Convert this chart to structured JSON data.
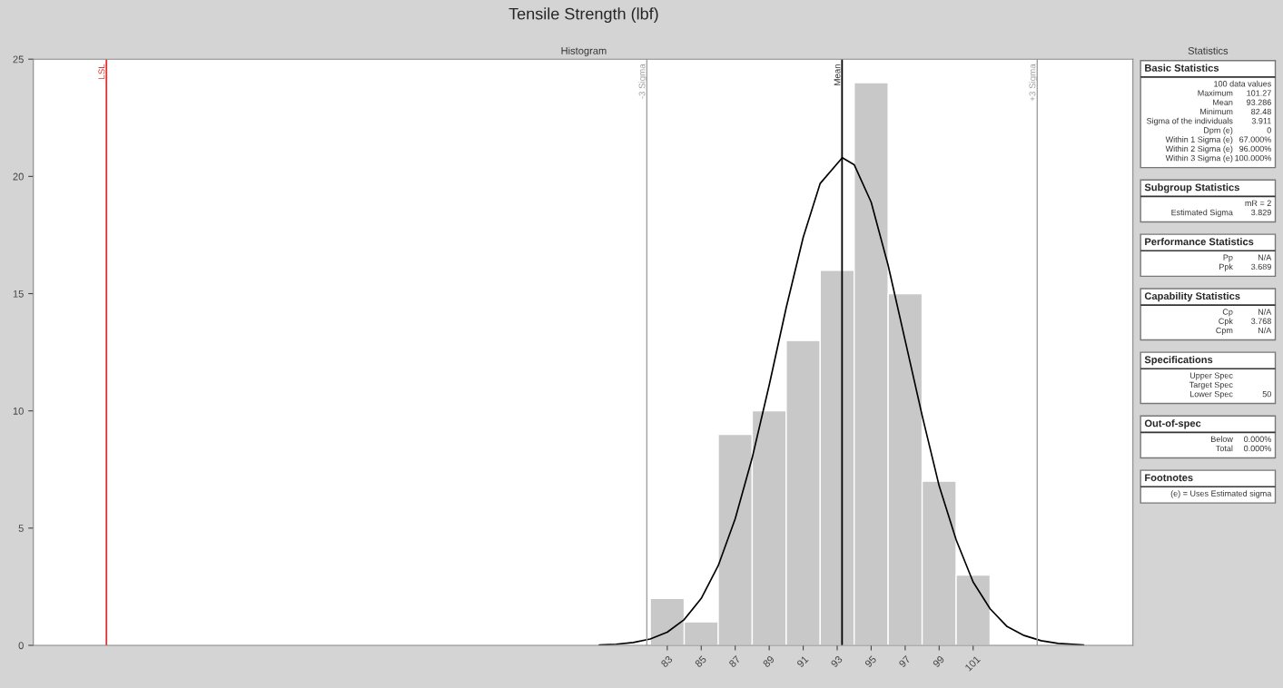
{
  "chart_data": {
    "type": "histogram",
    "title": "Tensile Strength (lbf)",
    "subtitle": "Histogram",
    "bins": [
      82,
      84,
      86,
      88,
      90,
      92,
      94,
      96,
      98,
      100,
      102
    ],
    "values": [
      2,
      1,
      9,
      10,
      13,
      16,
      24,
      15,
      7,
      3
    ],
    "color": "#c8c8c8",
    "series": [
      {
        "type": "line",
        "color": "#000000",
        "x": [
          79,
          80,
          81,
          82,
          83,
          84,
          85,
          86,
          87,
          88,
          89,
          90,
          91,
          92,
          93.3,
          94,
          95,
          96,
          97,
          98,
          99,
          100,
          101,
          102,
          103,
          104,
          105,
          106,
          107.5
        ],
        "values": [
          0.02,
          0.05,
          0.12,
          0.27,
          0.56,
          1.1,
          2.0,
          3.4,
          5.4,
          8.0,
          11.1,
          14.4,
          17.4,
          19.7,
          20.8,
          20.5,
          18.9,
          16.2,
          13.0,
          9.8,
          6.8,
          4.5,
          2.7,
          1.56,
          0.8,
          0.42,
          0.2,
          0.08,
          0.02
        ]
      }
    ],
    "xlim": [
      45.7,
      110.4
    ],
    "xticks": [
      83,
      85,
      87,
      89,
      91,
      93,
      95,
      97,
      99,
      101
    ],
    "ylim": [
      0,
      25
    ],
    "yticks": [
      0,
      5,
      10,
      15,
      20,
      25
    ],
    "grid": false,
    "ref_lines": [
      {
        "axis": "x",
        "value": 50,
        "label": "LSL",
        "color": "#e03030"
      },
      {
        "axis": "x",
        "value": 81.8,
        "label": "-3 Sigma",
        "color": "#a0a0a0"
      },
      {
        "axis": "x",
        "value": 93.286,
        "label": "Mean",
        "color": "#000000"
      },
      {
        "axis": "x",
        "value": 104.77,
        "label": "+3 Sigma",
        "color": "#a0a0a0"
      }
    ],
    "annotations": [
      "Statistics",
      "Basic Statistics\n\t100 data values\nMaximum\t101.27\nMean\t93.286\nMinimum\t82.48\nSigma of the individuals\t3.911\nDpm (e)\t0\nWithin 1 Sigma (e)\t67.000%\nWithin 2 Sigma (e)\t96.000%\nWithin 3 Sigma (e)\t100.000%",
      "Subgroup Statistics\n\tmR = 2\nEstimated Sigma\t3.829",
      "Performance Statistics\nPp\tN/A\nPpk\t3.689",
      "Capability Statistics\nCp\tN/A\nCpk\t3.768\nCpm\tN/A",
      "Specifications\nUpper Spec\t\nTarget Spec\t\nLower Spec\t50",
      "Out-of-spec\nBelow\t0.000%\nTotal\t0.000%",
      "Footnotes\n\t(e) = Uses Estimated sigma"
    ]
  }
}
